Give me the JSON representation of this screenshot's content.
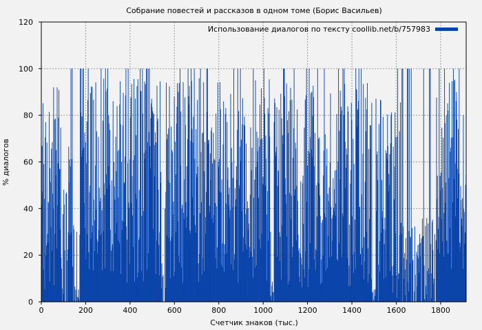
{
  "chart_data": {
    "type": "bar",
    "title": "Собрание повестей и рассказов в одном томе (Борис Васильев)",
    "xlabel": "Счетчик знаков (тыс.)",
    "ylabel": "% диалогов",
    "xlim": [
      0,
      1915
    ],
    "ylim": [
      0,
      120
    ],
    "xticks": [
      0,
      200,
      400,
      600,
      800,
      1000,
      1200,
      1400,
      1600,
      1800
    ],
    "yticks": [
      0,
      20,
      40,
      60,
      80,
      100,
      120
    ],
    "grid": true,
    "legend_position": "top-right",
    "series": [
      {
        "name": "Использование диалогов по тексту coollib.net/b/757983",
        "color": "#0a44aa",
        "bin_width": 2,
        "x_start": 0,
        "segments": [
          {
            "from": 0,
            "to": 90,
            "level": 48,
            "spread": 45,
            "max": 92
          },
          {
            "from": 90,
            "to": 150,
            "level": 30,
            "spread": 40,
            "max": 100
          },
          {
            "from": 150,
            "to": 172,
            "level": 3,
            "spread": 6,
            "max": 30
          },
          {
            "from": 172,
            "to": 540,
            "level": 52,
            "spread": 44,
            "max": 100
          },
          {
            "from": 540,
            "to": 560,
            "level": 6,
            "spread": 12,
            "max": 40
          },
          {
            "from": 560,
            "to": 1030,
            "level": 52,
            "spread": 44,
            "max": 100
          },
          {
            "from": 1030,
            "to": 1048,
            "level": 3,
            "spread": 6,
            "max": 30
          },
          {
            "from": 1048,
            "to": 1490,
            "level": 50,
            "spread": 44,
            "max": 100
          },
          {
            "from": 1490,
            "to": 1505,
            "level": 2,
            "spread": 4,
            "max": 20
          },
          {
            "from": 1505,
            "to": 1620,
            "level": 45,
            "spread": 45,
            "max": 100
          },
          {
            "from": 1620,
            "to": 1780,
            "level": 14,
            "spread": 25,
            "max": 100
          },
          {
            "from": 1780,
            "to": 1885,
            "level": 55,
            "spread": 42,
            "max": 100
          },
          {
            "from": 1885,
            "to": 1915,
            "level": 30,
            "spread": 30,
            "max": 80
          }
        ]
      }
    ]
  }
}
